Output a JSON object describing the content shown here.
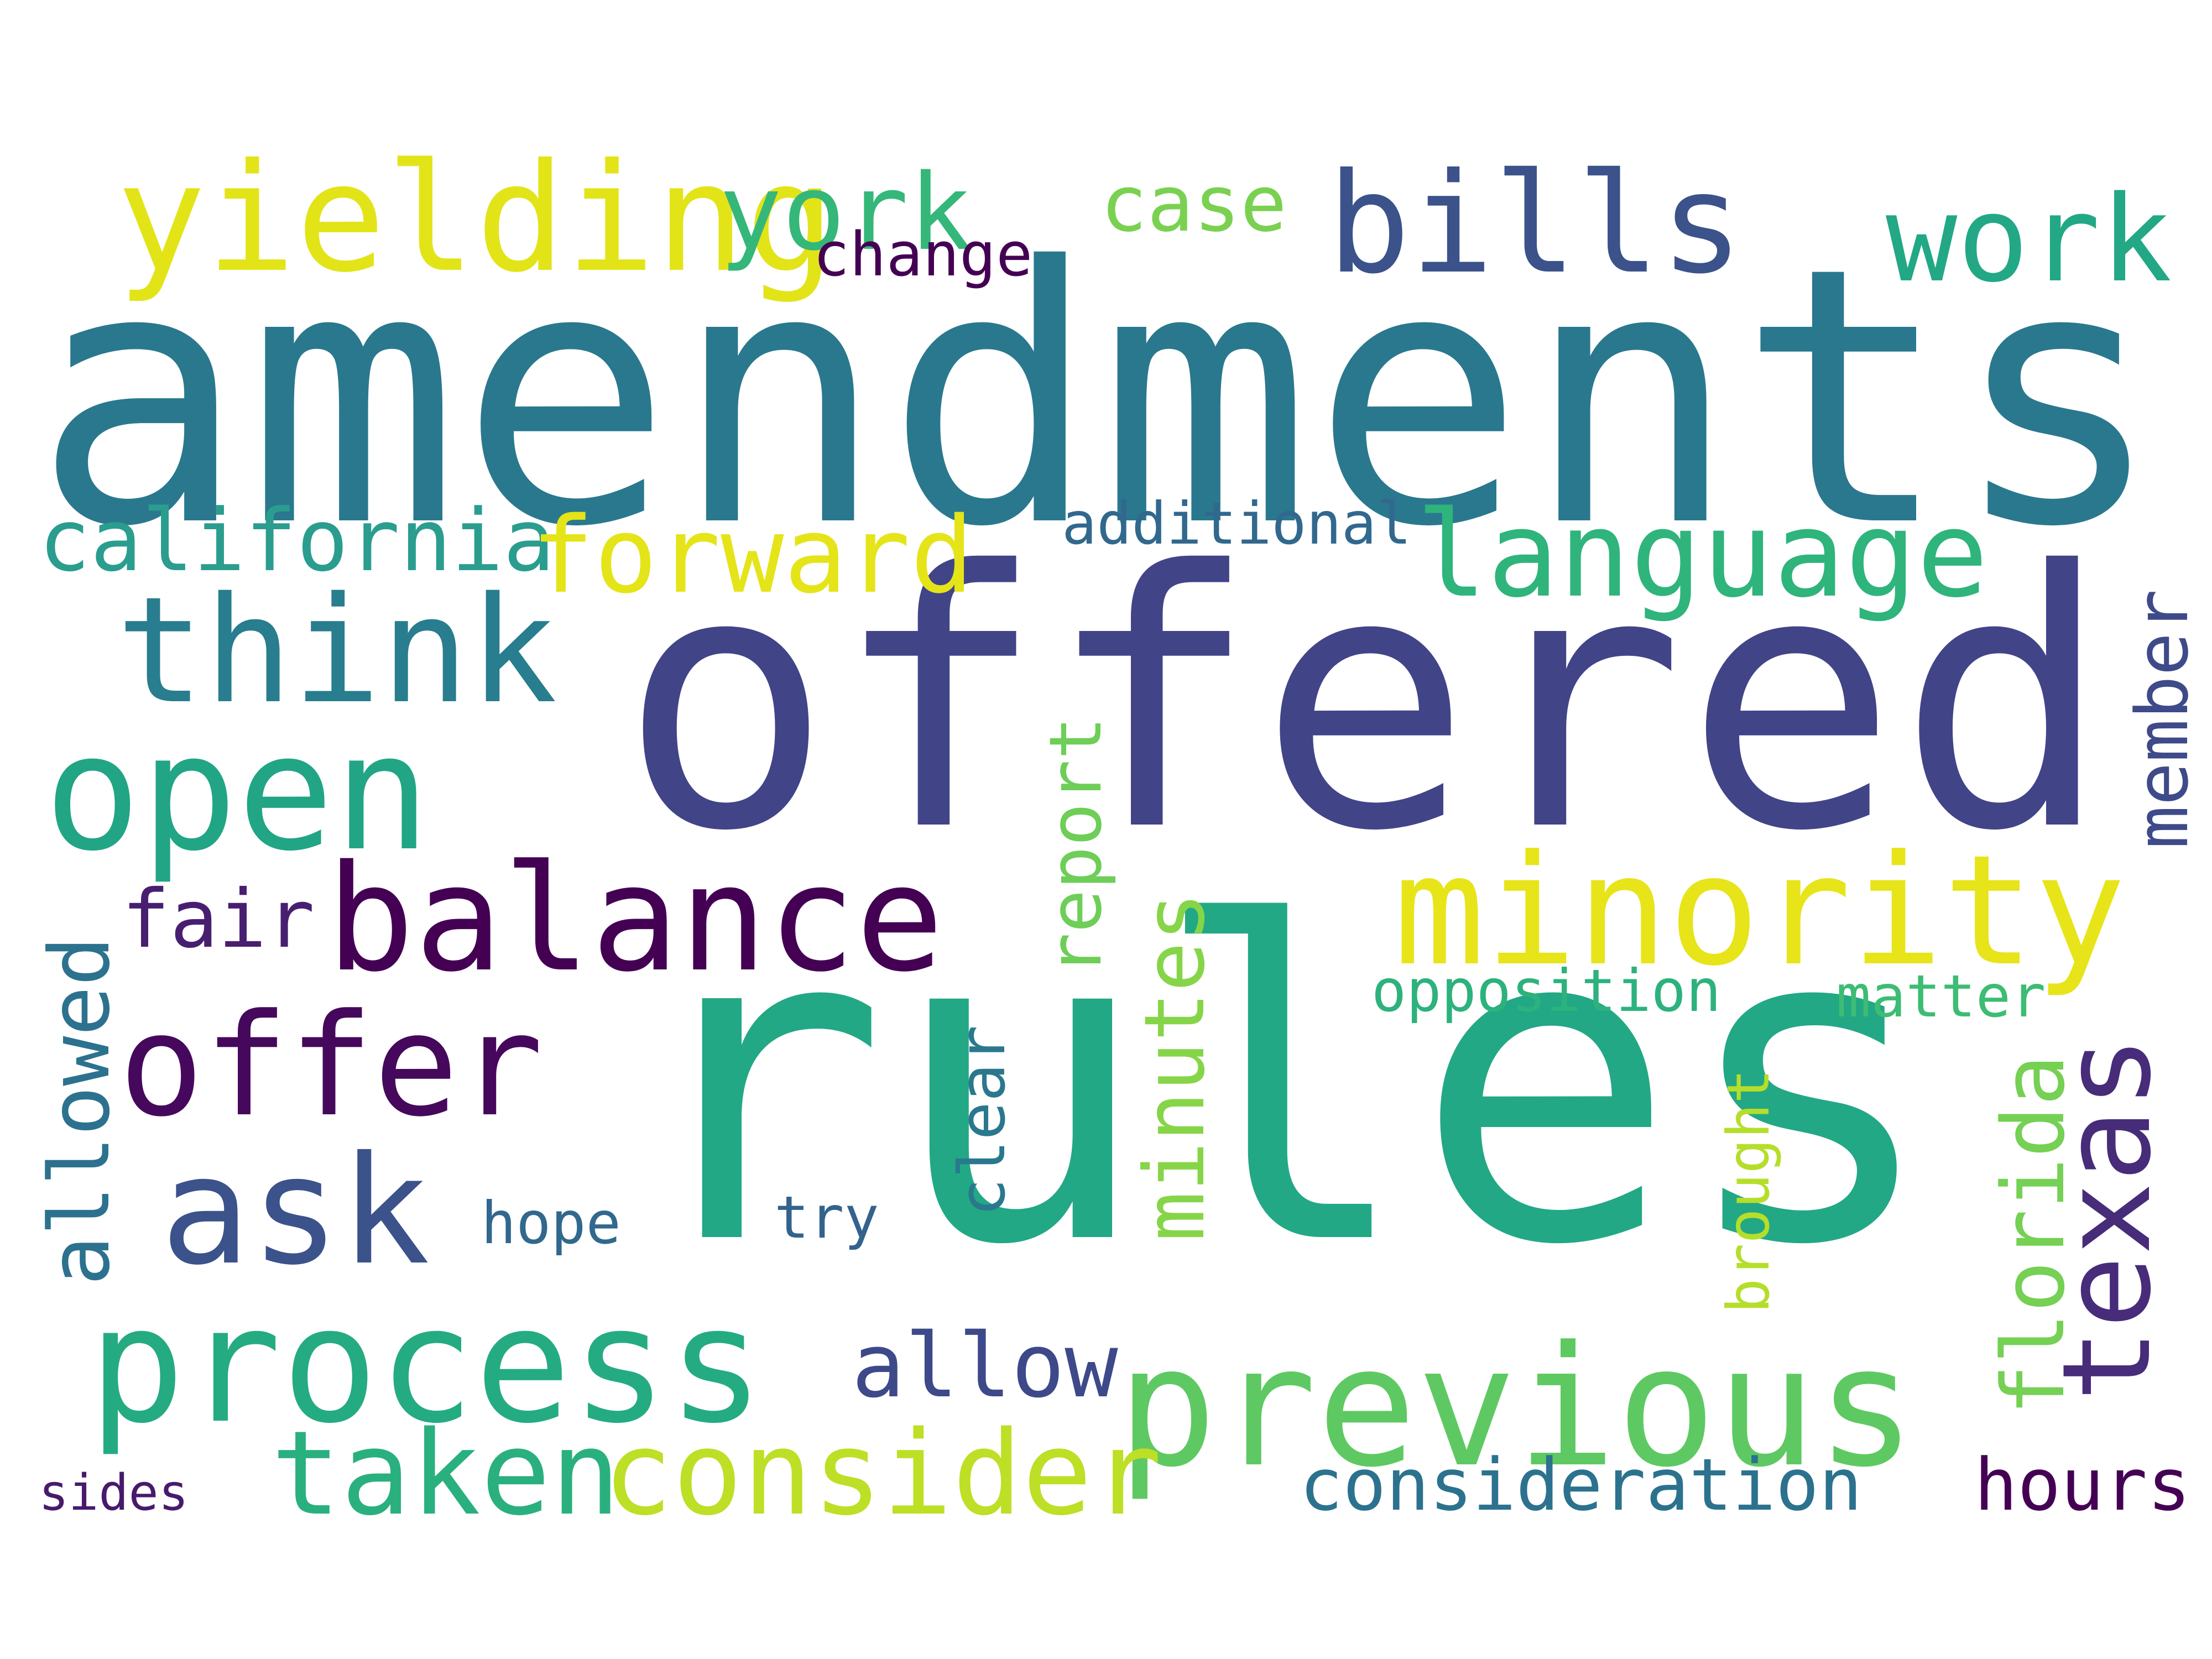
{
  "colors": {
    "background": "#ffffff"
  },
  "words": {
    "amendments": {
      "text": "amendments",
      "color": "#2a788e",
      "vertical": false
    },
    "offered": {
      "text": "offered",
      "color": "#414487",
      "vertical": false
    },
    "rules": {
      "text": "rules",
      "color": "#22a884",
      "vertical": false
    },
    "yielding": {
      "text": "yielding",
      "color": "#e2e418",
      "vertical": false
    },
    "york": {
      "text": "york",
      "color": "#35b779",
      "vertical": false
    },
    "change": {
      "text": "change",
      "color": "#440154",
      "vertical": false
    },
    "case": {
      "text": "case",
      "color": "#7ad151",
      "vertical": false
    },
    "bills": {
      "text": "bills",
      "color": "#3b528b",
      "vertical": false
    },
    "work": {
      "text": "work",
      "color": "#22a884",
      "vertical": false
    },
    "california": {
      "text": "california",
      "color": "#2a9d8f",
      "vertical": false
    },
    "forward": {
      "text": "forward",
      "color": "#e5e419",
      "vertical": false
    },
    "additional": {
      "text": "additional",
      "color": "#31688e",
      "vertical": false
    },
    "language": {
      "text": "language",
      "color": "#2fb47c",
      "vertical": false
    },
    "think": {
      "text": "think",
      "color": "#287d8e",
      "vertical": false
    },
    "open": {
      "text": "open",
      "color": "#21a585",
      "vertical": false
    },
    "member": {
      "text": "member",
      "color": "#3e4a89",
      "vertical": true
    },
    "report": {
      "text": "report",
      "color": "#6ece58",
      "vertical": true
    },
    "balance": {
      "text": "balance",
      "color": "#440154",
      "vertical": false
    },
    "minority": {
      "text": "minority",
      "color": "#e7e419",
      "vertical": false
    },
    "fair": {
      "text": "fair",
      "color": "#481f70",
      "vertical": false
    },
    "minutes": {
      "text": "minutes",
      "color": "#86d549",
      "vertical": true
    },
    "allowed": {
      "text": "allowed",
      "color": "#2c728e",
      "vertical": true
    },
    "offer": {
      "text": "offer",
      "color": "#46085c",
      "vertical": false
    },
    "opposition": {
      "text": "opposition",
      "color": "#2db27d",
      "vertical": false
    },
    "matter": {
      "text": "matter",
      "color": "#3dbc74",
      "vertical": false
    },
    "texas": {
      "text": "texas",
      "color": "#472c7a",
      "vertical": true
    },
    "ask": {
      "text": "ask",
      "color": "#3b528b",
      "vertical": false
    },
    "clear": {
      "text": "clear",
      "color": "#2a788e",
      "vertical": true
    },
    "florida": {
      "text": "florida",
      "color": "#75d054",
      "vertical": true
    },
    "hope": {
      "text": "hope",
      "color": "#31688e",
      "vertical": false
    },
    "try": {
      "text": "try",
      "color": "#33638d",
      "vertical": false
    },
    "brought": {
      "text": "brought",
      "color": "#b5de2b",
      "vertical": true
    },
    "process": {
      "text": "process",
      "color": "#25ab82",
      "vertical": false
    },
    "allow": {
      "text": "allow",
      "color": "#3e4989",
      "vertical": false
    },
    "previous": {
      "text": "previous",
      "color": "#5ec962",
      "vertical": false
    },
    "taken": {
      "text": "taken",
      "color": "#2ab07f",
      "vertical": false
    },
    "consider": {
      "text": "consider",
      "color": "#bddf26",
      "vertical": false
    },
    "consideration": {
      "text": "consideration",
      "color": "#2c728e",
      "vertical": false
    },
    "hours": {
      "text": "hours",
      "color": "#440154",
      "vertical": false
    },
    "sides": {
      "text": "sides",
      "color": "#481a6c",
      "vertical": false
    }
  }
}
